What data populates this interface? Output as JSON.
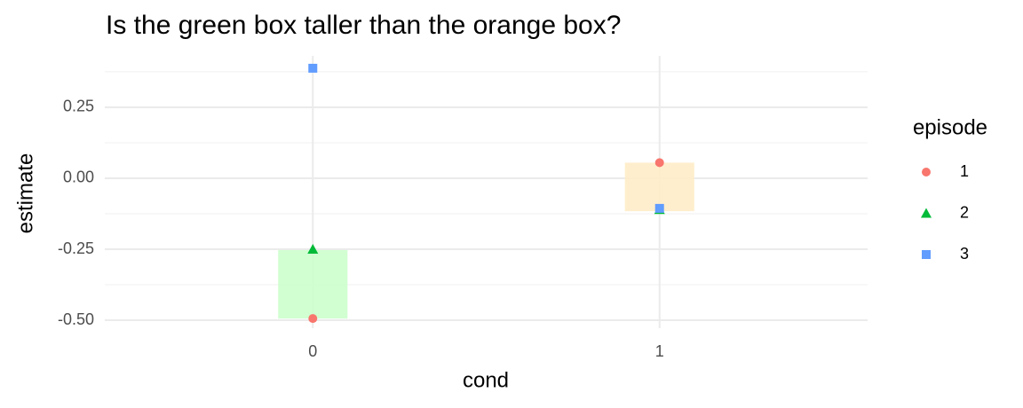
{
  "chart_data": {
    "type": "scatter",
    "title": "Is the green box taller than the orange box?",
    "x_label": "cond",
    "y_label": "estimate",
    "categories": [
      "0",
      "1"
    ],
    "series": [
      {
        "name": "1",
        "color": "#F8766D",
        "shape": "circle",
        "values": [
          -0.494,
          0.055
        ]
      },
      {
        "name": "2",
        "color": "#00BA38",
        "shape": "triangle",
        "values": [
          -0.25,
          -0.11
        ]
      },
      {
        "name": "3",
        "color": "#619CFF",
        "shape": "square",
        "values": [
          0.3875,
          -0.106
        ]
      }
    ],
    "boxes": [
      {
        "color": "#ccffcc",
        "low": -0.494,
        "high": -0.253
      },
      {
        "color": "#ffecc8",
        "low": -0.116,
        "high": 0.055
      }
    ],
    "ylim": [
      -0.528,
      0.431
    ],
    "yticks": [
      {
        "value": -0.5,
        "label": "-0.50"
      },
      {
        "value": -0.25,
        "label": "-0.25"
      },
      {
        "value": 0,
        "label": "0.00"
      },
      {
        "value": 0.25,
        "label": "0.25"
      }
    ],
    "minor_yticks": [
      -0.375,
      -0.125,
      0.125,
      0.375
    ],
    "legend_title": "episode",
    "grid": true
  }
}
